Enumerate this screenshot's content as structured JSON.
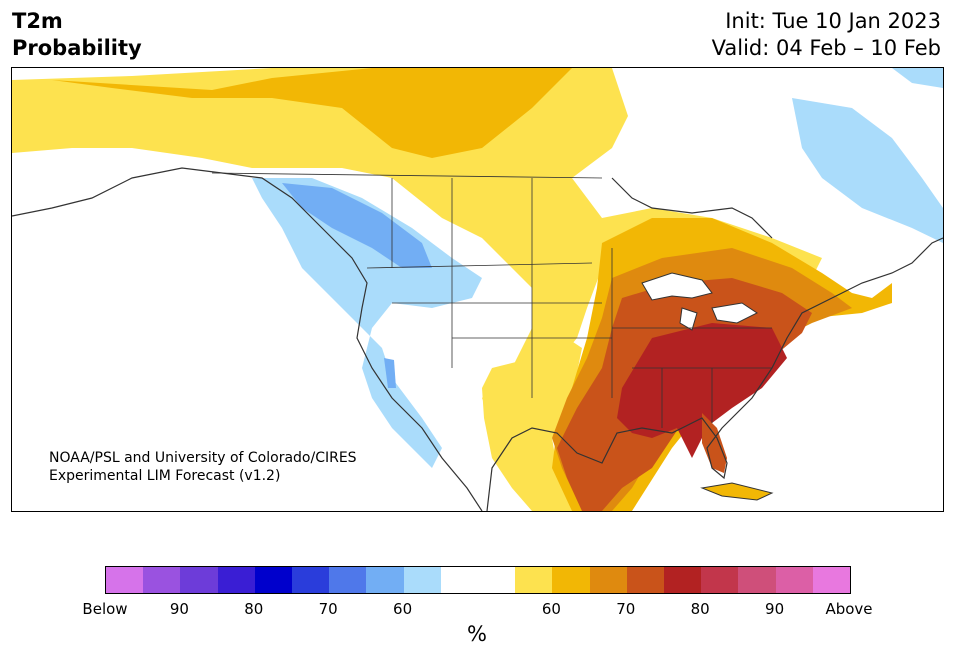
{
  "header": {
    "title_line1": "T2m",
    "title_line2": "Probability",
    "init": "Init: Tue 10 Jan 2023",
    "valid": "Valid: 04 Feb – 10 Feb"
  },
  "credit": {
    "line1": "NOAA/PSL and University of Colorado/CIRES",
    "line2": "Experimental LIM Forecast (v1.2)"
  },
  "colorbar": {
    "colors": [
      "#d673ea",
      "#9a52e0",
      "#6d3cd9",
      "#3a1ed4",
      "#0000cc",
      "#2a3ddb",
      "#4f78ea",
      "#72aef4",
      "#aadcfb",
      "#ffffff",
      "#ffffff",
      "#fde24f",
      "#f2b705",
      "#df8a0f",
      "#c9531a",
      "#b22222",
      "#c2364b",
      "#cf4f7a",
      "#dc5fa6",
      "#e878df"
    ],
    "tick_labels": [
      "Below",
      "90",
      "80",
      "70",
      "60",
      "60",
      "70",
      "80",
      "90",
      "Above"
    ],
    "unit": "%"
  },
  "legend_colors": {
    "above_60": "#fde24f",
    "above_70": "#df8a0f",
    "above_80": "#b22222",
    "below_60": "#aadcfb",
    "below_70": "#72aef4"
  }
}
